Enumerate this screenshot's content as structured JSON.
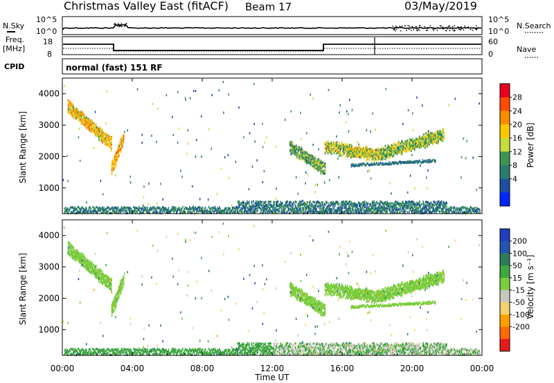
{
  "header": {
    "title": "Christmas Valley East (fitACF)",
    "beam": "Beam 17",
    "date": "03/May/2019"
  },
  "noise_panel": {
    "left_label": "N.Sky",
    "right_label": "N.Search",
    "left_ticks": [
      "10^5",
      "10^0"
    ],
    "right_ticks": [
      "10^5",
      "10^0"
    ]
  },
  "freq_panel": {
    "left_label_1": "Freq.",
    "left_label_2": "[MHz]",
    "right_label": "Nave",
    "left_ticks": [
      "18",
      "8"
    ],
    "right_ticks": [
      "60",
      "0"
    ]
  },
  "cpid": {
    "label": "CPID",
    "text": "normal (fast) 151 RF"
  },
  "power_colorbar": {
    "label": "Power [dB]",
    "ticks": [
      "28",
      "24",
      "20",
      "16",
      "12",
      "8",
      "4"
    ],
    "colors": [
      "#e8001e",
      "#ff4a00",
      "#ff8c00",
      "#ffc800",
      "#c8dc3c",
      "#3c9650",
      "#2a7d6e",
      "#1f4fa0",
      "#0026ff"
    ]
  },
  "velocity_colorbar": {
    "label": "Velocity [m s⁻¹]",
    "ticks": [
      "200",
      "100",
      "50",
      "15",
      "-15",
      "-50",
      "-100",
      "-200"
    ],
    "colors": [
      "#1f3fbf",
      "#2255b0",
      "#2f7c5c",
      "#3fa83f",
      "#7acd3c",
      "#c8c8bc",
      "#f5d26e",
      "#ffa000",
      "#ff6a00",
      "#e81a1a"
    ]
  },
  "chart_data": [
    {
      "type": "heatmap",
      "parameter": "power",
      "xlabel": "",
      "ylabel": "Slant Range [km]",
      "y_ticks": [
        "4000",
        "3000",
        "2000",
        "1000"
      ],
      "x_range_hours": [
        0,
        24
      ],
      "y_range_km": [
        180,
        4500
      ],
      "scatter_regions": [
        {
          "hours": [
            0.3,
            2.8
          ],
          "range_km": [
            3600,
            2400
          ],
          "power_db": 22
        },
        {
          "hours": [
            2.8,
            3.5
          ],
          "range_km": [
            1600,
            2600
          ],
          "power_db": 24
        },
        {
          "hours": [
            13.0,
            15.0
          ],
          "range_km": [
            2300,
            1600
          ],
          "power_db": 14
        },
        {
          "hours": [
            15.0,
            18.0
          ],
          "range_km": [
            2300,
            2050
          ],
          "power_db": 18
        },
        {
          "hours": [
            18.0,
            21.8
          ],
          "range_km": [
            2050,
            2700
          ],
          "power_db": 16
        }
      ]
    },
    {
      "type": "heatmap",
      "parameter": "velocity",
      "xlabel": "Time UT",
      "ylabel": "Slant Range [km]",
      "y_ticks": [
        "4000",
        "3000",
        "2000",
        "1000"
      ],
      "x_ticks": [
        "00:00",
        "04:00",
        "08:00",
        "12:00",
        "16:00",
        "20:00",
        "00:00"
      ],
      "x_range_hours": [
        0,
        24
      ],
      "y_range_km": [
        180,
        4500
      ]
    }
  ]
}
